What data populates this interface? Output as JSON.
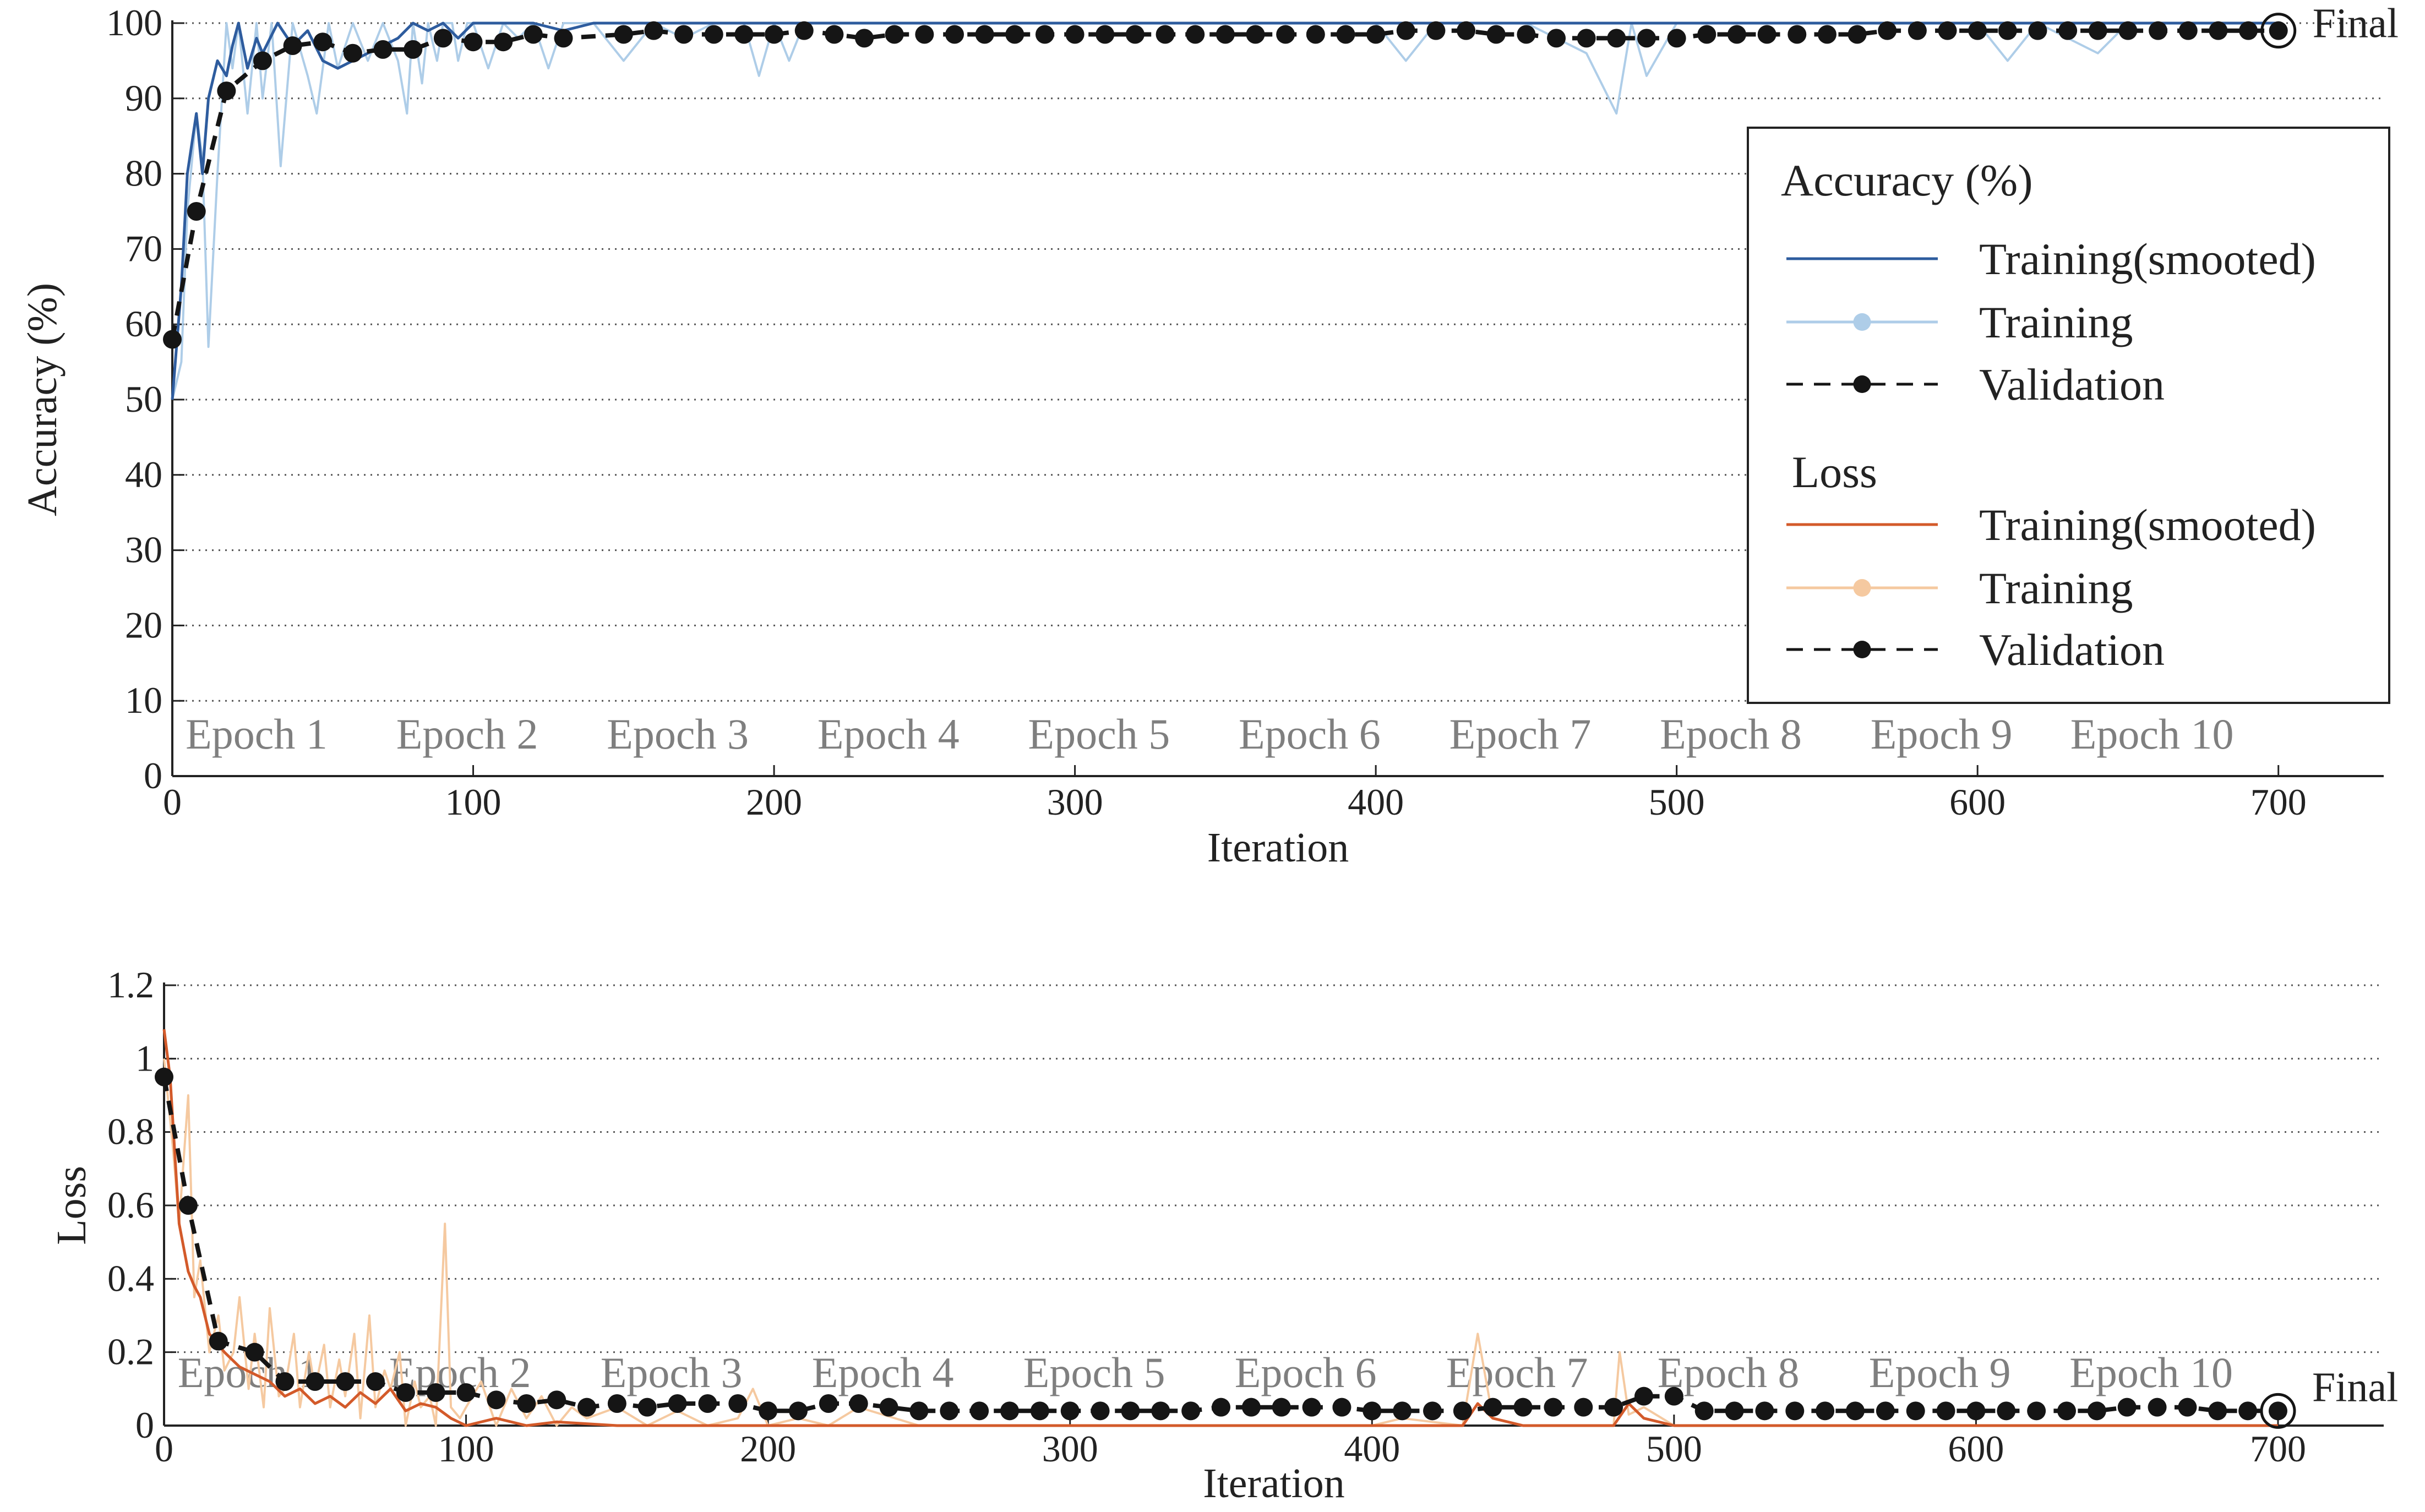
{
  "chart_data": [
    {
      "type": "line",
      "xlabel": "Iteration",
      "ylabel": "Accuracy (%)",
      "xlim": [
        0,
        735
      ],
      "ylim": [
        0,
        100
      ],
      "xticks": [
        "0",
        "100",
        "200",
        "300",
        "400",
        "500",
        "600",
        "700"
      ],
      "yticks": [
        "0",
        "10",
        "20",
        "30",
        "40",
        "50",
        "60",
        "70",
        "80",
        "90",
        "100"
      ],
      "grid": "horizontal dotted",
      "epochs": [
        "Epoch 1",
        "Epoch 2",
        "Epoch 3",
        "Epoch 4",
        "Epoch 5",
        "Epoch 6",
        "Epoch 7",
        "Epoch 8",
        "Epoch 9",
        "Epoch 10"
      ],
      "final_label": "Final",
      "series": [
        {
          "name": "Training(smooted)",
          "color": "#2e5c9e",
          "x": [
            0,
            3,
            5,
            8,
            10,
            12,
            15,
            18,
            20,
            22,
            25,
            28,
            30,
            35,
            40,
            45,
            50,
            55,
            60,
            65,
            70,
            75,
            80,
            85,
            90,
            95,
            100,
            110,
            120,
            130,
            140,
            150,
            160,
            180,
            200,
            250,
            300,
            350,
            400,
            450,
            480,
            500,
            550,
            600,
            650,
            700
          ],
          "y": [
            50,
            65,
            80,
            88,
            80,
            90,
            95,
            93,
            97,
            100,
            94,
            98,
            96,
            100,
            97,
            99,
            95,
            94,
            95,
            96,
            97,
            98,
            100,
            99,
            100,
            98,
            100,
            100,
            100,
            99,
            100,
            100,
            100,
            100,
            100,
            100,
            100,
            100,
            100,
            100,
            100,
            100,
            100,
            100,
            100,
            100
          ]
        },
        {
          "name": "Training",
          "color": "#aecde8",
          "x": [
            0,
            3,
            5,
            8,
            10,
            12,
            15,
            18,
            20,
            22,
            25,
            28,
            30,
            33,
            36,
            40,
            45,
            48,
            52,
            55,
            60,
            65,
            70,
            75,
            78,
            80,
            83,
            85,
            88,
            90,
            93,
            95,
            98,
            100,
            105,
            110,
            115,
            120,
            125,
            130,
            140,
            150,
            160,
            170,
            180,
            190,
            195,
            200,
            205,
            210,
            250,
            300,
            350,
            400,
            410,
            420,
            450,
            470,
            480,
            485,
            490,
            500,
            550,
            600,
            610,
            620,
            640,
            650,
            700
          ],
          "y": [
            50,
            55,
            75,
            88,
            82,
            57,
            80,
            100,
            94,
            100,
            88,
            100,
            90,
            100,
            81,
            100,
            93,
            88,
            100,
            94,
            100,
            95,
            100,
            95,
            88,
            100,
            92,
            100,
            95,
            100,
            100,
            95,
            100,
            100,
            94,
            100,
            98,
            100,
            94,
            100,
            100,
            95,
            100,
            98,
            100,
            100,
            93,
            100,
            95,
            100,
            100,
            100,
            100,
            100,
            95,
            100,
            100,
            96,
            88,
            100,
            93,
            100,
            100,
            100,
            95,
            100,
            96,
            100,
            100
          ]
        },
        {
          "name": "Validation",
          "color": "#151515",
          "x": [
            0,
            8,
            18,
            30,
            40,
            50,
            60,
            70,
            80,
            90,
            100,
            110,
            120,
            130,
            150,
            160,
            170,
            180,
            190,
            200,
            210,
            220,
            230,
            240,
            250,
            260,
            270,
            280,
            290,
            300,
            310,
            320,
            330,
            340,
            350,
            360,
            370,
            380,
            390,
            400,
            410,
            420,
            430,
            440,
            450,
            460,
            470,
            480,
            490,
            500,
            510,
            520,
            530,
            540,
            550,
            560,
            570,
            580,
            590,
            600,
            610,
            620,
            630,
            640,
            650,
            660,
            670,
            680,
            690,
            700
          ],
          "y": [
            58,
            75,
            91,
            95,
            97,
            97.5,
            96,
            96.5,
            96.5,
            98,
            97.5,
            97.5,
            98.5,
            98,
            98.5,
            99,
            98.5,
            98.5,
            98.5,
            98.5,
            99,
            98.5,
            98,
            98.5,
            98.5,
            98.5,
            98.5,
            98.5,
            98.5,
            98.5,
            98.5,
            98.5,
            98.5,
            98.5,
            98.5,
            98.5,
            98.5,
            98.5,
            98.5,
            98.5,
            99,
            99,
            99,
            98.5,
            98.5,
            98,
            98,
            98,
            98,
            98,
            98.5,
            98.5,
            98.5,
            98.5,
            98.5,
            98.5,
            99,
            99,
            99,
            99,
            99,
            99,
            99,
            99,
            99,
            99,
            99,
            99,
            99,
            99
          ]
        }
      ],
      "legend": {
        "placement": "right",
        "acc_title": "Accuracy (%)",
        "loss_title": "Loss",
        "acc_items": [
          "Training(smooted)",
          "Training",
          "Validation"
        ],
        "loss_items": [
          "Training(smooted)",
          "Training",
          "Validation"
        ]
      }
    },
    {
      "type": "line",
      "xlabel": "Iteration",
      "ylabel": "Loss",
      "xlim": [
        0,
        735
      ],
      "ylim": [
        0,
        1.2
      ],
      "xticks": [
        "0",
        "100",
        "200",
        "300",
        "400",
        "500",
        "600",
        "700"
      ],
      "yticks": [
        "0",
        "0.2",
        "0.4",
        "0.6",
        "0.8",
        "1",
        "1.2"
      ],
      "grid": "horizontal dotted",
      "epochs": [
        "Epoch 1",
        "Epoch 2",
        "Epoch 3",
        "Epoch 4",
        "Epoch 5",
        "Epoch 6",
        "Epoch 7",
        "Epoch 8",
        "Epoch 9",
        "Epoch 10"
      ],
      "final_label": "Final",
      "series": [
        {
          "name": "Training(smooted)",
          "color": "#d35a2a",
          "x": [
            0,
            2,
            5,
            8,
            10,
            12,
            15,
            18,
            20,
            25,
            30,
            35,
            40,
            45,
            50,
            55,
            60,
            65,
            70,
            75,
            80,
            85,
            90,
            95,
            100,
            110,
            120,
            130,
            150,
            200,
            250,
            300,
            350,
            400,
            430,
            435,
            440,
            450,
            470,
            480,
            485,
            490,
            500,
            550,
            600,
            650,
            700
          ],
          "y": [
            1.08,
            0.95,
            0.55,
            0.42,
            0.38,
            0.35,
            0.25,
            0.22,
            0.2,
            0.16,
            0.14,
            0.12,
            0.08,
            0.1,
            0.06,
            0.08,
            0.05,
            0.09,
            0.06,
            0.1,
            0.04,
            0.06,
            0.05,
            0.02,
            0,
            0.02,
            0,
            0.01,
            0,
            0,
            0,
            0,
            0,
            0,
            0,
            0.06,
            0.02,
            0,
            0,
            0,
            0.06,
            0.02,
            0,
            0,
            0,
            0,
            0
          ]
        },
        {
          "name": "Training",
          "color": "#f5c9a0",
          "x": [
            0,
            3,
            5,
            8,
            10,
            12,
            15,
            18,
            20,
            23,
            25,
            28,
            30,
            33,
            35,
            38,
            40,
            43,
            45,
            48,
            50,
            53,
            55,
            58,
            60,
            63,
            65,
            68,
            70,
            73,
            75,
            78,
            80,
            83,
            85,
            88,
            90,
            93,
            95,
            98,
            100,
            105,
            110,
            115,
            120,
            125,
            130,
            135,
            140,
            150,
            160,
            170,
            180,
            190,
            195,
            200,
            210,
            220,
            230,
            250,
            300,
            350,
            400,
            410,
            430,
            435,
            440,
            450,
            470,
            480,
            482,
            485,
            490,
            500,
            550,
            600,
            650,
            700
          ],
          "y": [
            1.0,
            0.75,
            0.55,
            0.9,
            0.35,
            0.45,
            0.2,
            0.3,
            0.15,
            0.2,
            0.35,
            0.1,
            0.25,
            0.05,
            0.32,
            0.08,
            0.1,
            0.25,
            0.05,
            0.2,
            0.1,
            0.22,
            0.05,
            0.18,
            0.08,
            0.25,
            0.02,
            0.3,
            0.05,
            0.15,
            0.1,
            0.2,
            0,
            0.12,
            0.05,
            0.08,
            0,
            0.55,
            0.05,
            0.02,
            0.05,
            0.12,
            0,
            0.1,
            0.02,
            0.08,
            0,
            0.05,
            0.02,
            0.05,
            0,
            0.04,
            0,
            0.02,
            0.1,
            0,
            0.02,
            0,
            0.05,
            0,
            0,
            0,
            0,
            0.02,
            0,
            0.25,
            0.02,
            0,
            0,
            0,
            0.2,
            0.03,
            0.05,
            0,
            0,
            0,
            0,
            0
          ]
        },
        {
          "name": "Validation",
          "color": "#151515",
          "x": [
            0,
            8,
            18,
            30,
            40,
            50,
            60,
            70,
            80,
            90,
            100,
            110,
            120,
            130,
            140,
            150,
            160,
            170,
            180,
            190,
            200,
            210,
            220,
            230,
            240,
            250,
            260,
            270,
            280,
            290,
            300,
            310,
            320,
            330,
            340,
            350,
            360,
            370,
            380,
            390,
            400,
            410,
            420,
            430,
            440,
            450,
            460,
            470,
            480,
            490,
            500,
            510,
            520,
            530,
            540,
            550,
            560,
            570,
            580,
            590,
            600,
            610,
            620,
            630,
            640,
            650,
            660,
            670,
            680,
            690,
            700
          ],
          "y": [
            0.95,
            0.6,
            0.23,
            0.2,
            0.12,
            0.12,
            0.12,
            0.12,
            0.09,
            0.09,
            0.09,
            0.07,
            0.06,
            0.07,
            0.05,
            0.06,
            0.05,
            0.06,
            0.06,
            0.06,
            0.04,
            0.04,
            0.06,
            0.06,
            0.05,
            0.04,
            0.04,
            0.04,
            0.04,
            0.04,
            0.04,
            0.04,
            0.04,
            0.04,
            0.04,
            0.05,
            0.05,
            0.05,
            0.05,
            0.05,
            0.04,
            0.04,
            0.04,
            0.04,
            0.05,
            0.05,
            0.05,
            0.05,
            0.05,
            0.08,
            0.08,
            0.04,
            0.04,
            0.04,
            0.04,
            0.04,
            0.04,
            0.04,
            0.04,
            0.04,
            0.04,
            0.04,
            0.04,
            0.04,
            0.04,
            0.05,
            0.05,
            0.05,
            0.04,
            0.04,
            0.04
          ]
        }
      ]
    }
  ]
}
